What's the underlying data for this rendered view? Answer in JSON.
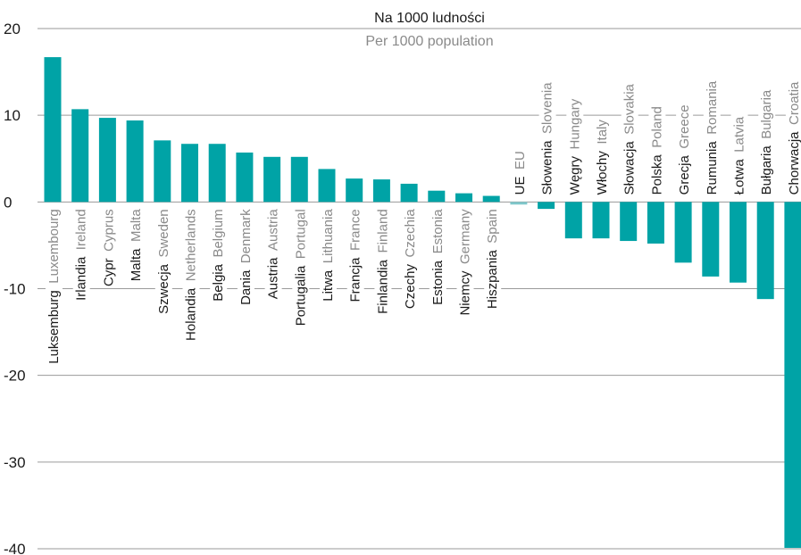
{
  "chart_data": {
    "type": "bar",
    "title": "Na 1000 ludności",
    "subtitle": "Per 1000 population",
    "categories": [
      {
        "pl": "Luksemburg",
        "en": "Luxembourg"
      },
      {
        "pl": "Irlandia",
        "en": "Ireland"
      },
      {
        "pl": "Cypr",
        "en": "Cyprus"
      },
      {
        "pl": "Malta",
        "en": "Malta"
      },
      {
        "pl": "Szwecja",
        "en": "Sweden"
      },
      {
        "pl": "Holandia",
        "en": "Netherlands"
      },
      {
        "pl": "Belgia",
        "en": "Belgium"
      },
      {
        "pl": "Dania",
        "en": "Denmark"
      },
      {
        "pl": "Austria",
        "en": "Austria"
      },
      {
        "pl": "Portugalia",
        "en": "Portugal"
      },
      {
        "pl": "Litwa",
        "en": "Lithuania"
      },
      {
        "pl": "Francja",
        "en": "France"
      },
      {
        "pl": "Finlandia",
        "en": "Finland"
      },
      {
        "pl": "Czechy",
        "en": "Czechia"
      },
      {
        "pl": "Estonia",
        "en": "Estonia"
      },
      {
        "pl": "Niemcy",
        "en": "Germany"
      },
      {
        "pl": "Hiszpania",
        "en": "Spain"
      },
      {
        "pl": "UE",
        "en": "EU"
      },
      {
        "pl": "Słowenia",
        "en": "Slovenia"
      },
      {
        "pl": "Węgry",
        "en": "Hungary"
      },
      {
        "pl": "Włochy",
        "en": "Italy"
      },
      {
        "pl": "Słowacja",
        "en": "Slovakia"
      },
      {
        "pl": "Polska",
        "en": "Poland"
      },
      {
        "pl": "Grecja",
        "en": "Greece"
      },
      {
        "pl": "Rumunia",
        "en": "Romania"
      },
      {
        "pl": "Łotwa",
        "en": "Latvia"
      },
      {
        "pl": "Bułgaria",
        "en": "Bulgaria"
      },
      {
        "pl": "Chorwacja",
        "en": "Croatia"
      }
    ],
    "values": [
      16.7,
      10.7,
      9.7,
      9.4,
      7.1,
      6.7,
      6.7,
      5.7,
      5.2,
      5.2,
      3.8,
      2.7,
      2.6,
      2.1,
      1.3,
      1.0,
      0.7,
      -0.3,
      -0.8,
      -4.2,
      -4.2,
      -4.5,
      -4.8,
      -7.0,
      -8.6,
      -9.3,
      -11.2,
      -39.9
    ],
    "ylim": [
      -40,
      20
    ],
    "yticks": [
      "20",
      "10",
      "0",
      "-10",
      "-20",
      "-30",
      "-40"
    ],
    "grid": true,
    "colors": {
      "bar": "#00a3a6",
      "eu_bar": "#7fc8cb",
      "grid": "#9a9a9a"
    }
  }
}
